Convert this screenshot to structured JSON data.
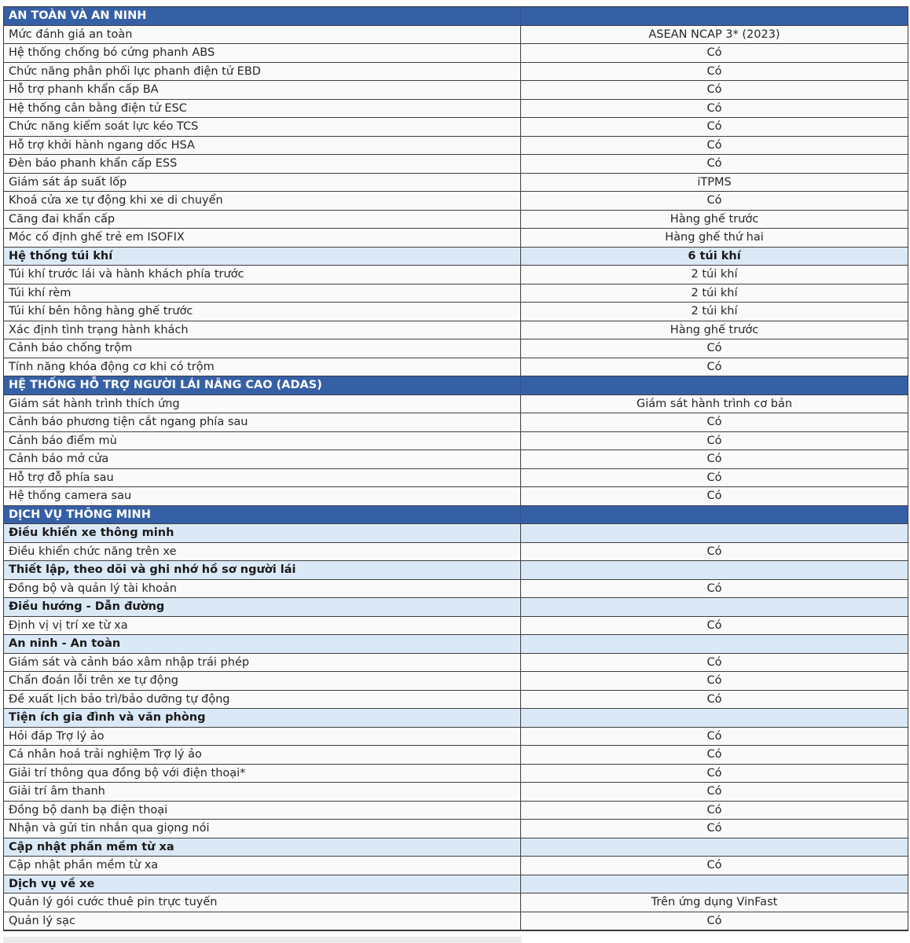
{
  "document_type": "vehicle-specification-table",
  "colors": {
    "section_header_bg": "#3660a6",
    "section_header_text": "#ffffff",
    "subheader_bg": "#dbe9f7",
    "row_bg": "#fafafa",
    "border": "#3f3f3f"
  },
  "table": {
    "sections": [
      {
        "title": "AN TOÀN VÀ AN NINH",
        "rows": [
          {
            "label": "Mức đánh giá an toàn",
            "value": "ASEAN NCAP 3* (2023)",
            "type": "normal"
          },
          {
            "label": "Hệ thống chống bó cứng phanh ABS",
            "value": "Có",
            "type": "normal"
          },
          {
            "label": "Chức năng phân phối lực phanh điện tử EBD",
            "value": "Có",
            "type": "normal"
          },
          {
            "label": "Hỗ trợ phanh khẩn cấp BA",
            "value": "Có",
            "type": "normal"
          },
          {
            "label": "Hệ thống cân bằng điện tử ESC",
            "value": "Có",
            "type": "normal"
          },
          {
            "label": "Chức năng kiểm soát lực kéo TCS",
            "value": "Có",
            "type": "normal"
          },
          {
            "label": "Hỗ trợ khởi hành ngang dốc HSA",
            "value": "Có",
            "type": "normal"
          },
          {
            "label": "Đèn báo phanh khẩn cấp ESS",
            "value": "Có",
            "type": "normal"
          },
          {
            "label": "Giám sát áp suất lốp",
            "value": "iTPMS",
            "type": "normal"
          },
          {
            "label": "Khoá cửa xe tự động khi xe di chuyển",
            "value": "Có",
            "type": "normal"
          },
          {
            "label": "Căng đai khẩn cấp",
            "value": "Hàng ghế trước",
            "type": "normal"
          },
          {
            "label": "Móc cố định ghế trẻ em ISOFIX",
            "value": "Hàng ghế thứ hai",
            "type": "normal"
          },
          {
            "label": "Hệ thống túi khí",
            "value": "6 túi khí",
            "type": "subheader"
          },
          {
            "label": "Túi khí trước lái và hành khách phía trước",
            "value": "2 túi khí",
            "type": "normal"
          },
          {
            "label": "Túi khí rèm",
            "value": "2 túi khí",
            "type": "normal"
          },
          {
            "label": "Túi khí bên hông hàng ghế trước",
            "value": "2 túi khí",
            "type": "normal"
          },
          {
            "label": "Xác định tình trạng hành khách",
            "value": "Hàng ghế trước",
            "type": "normal"
          },
          {
            "label": "Cảnh báo chống trộm",
            "value": "Có",
            "type": "normal"
          },
          {
            "label": "Tính năng khóa động cơ khi có trộm",
            "value": "Có",
            "type": "normal"
          }
        ]
      },
      {
        "title": "HỆ THỐNG HỖ TRỢ NGƯỜI LÁI NÂNG CAO (ADAS)",
        "rows": [
          {
            "label": "Giám sát hành trình thích ứng",
            "value": "Giám sát hành trình cơ bản",
            "type": "normal"
          },
          {
            "label": "Cảnh báo phương tiện cắt ngang phía sau",
            "value": "Có",
            "type": "normal"
          },
          {
            "label": "Cảnh báo điểm mù",
            "value": "Có",
            "type": "normal"
          },
          {
            "label": "Cảnh báo mở cửa",
            "value": "Có",
            "type": "normal"
          },
          {
            "label": "Hỗ trợ đỗ phía sau",
            "value": "Có",
            "type": "normal"
          },
          {
            "label": "Hệ thống camera sau",
            "value": "Có",
            "type": "normal"
          }
        ]
      },
      {
        "title": "DỊCH VỤ THÔNG MINH",
        "rows": [
          {
            "label": "Điều khiển xe thông minh",
            "value": "",
            "type": "subheader"
          },
          {
            "label": "Điều khiển chức năng trên xe",
            "value": "Có",
            "type": "normal"
          },
          {
            "label": "Thiết lập, theo dõi và ghi nhớ hồ sơ người lái",
            "value": "",
            "type": "subheader"
          },
          {
            "label": "Đồng bộ và quản lý tài khoản",
            "value": "Có",
            "type": "normal"
          },
          {
            "label": "Điều hướng - Dẫn đường",
            "value": "",
            "type": "subheader"
          },
          {
            "label": "Định vị vị trí xe từ xa",
            "value": "Có",
            "type": "normal"
          },
          {
            "label": "An ninh - An toàn",
            "value": "",
            "type": "subheader"
          },
          {
            "label": "Giám sát và cảnh báo xâm nhập trái phép",
            "value": "Có",
            "type": "normal"
          },
          {
            "label": "Chẩn đoán lỗi trên xe tự động",
            "value": "Có",
            "type": "normal"
          },
          {
            "label": "Đề xuất lịch bảo trì/bảo dưỡng tự động",
            "value": "Có",
            "type": "normal"
          },
          {
            "label": "Tiện ích gia đình và văn phòng",
            "value": "",
            "type": "subheader"
          },
          {
            "label": "Hỏi đáp Trợ lý ảo",
            "value": "Có",
            "type": "normal"
          },
          {
            "label": "Cá nhân hoá trải nghiệm Trợ lý ảo",
            "value": "Có",
            "type": "normal"
          },
          {
            "label": "Giải trí thông qua đồng bộ với điện thoại*",
            "value": "Có",
            "type": "normal"
          },
          {
            "label": "Giải trí âm thanh",
            "value": "Có",
            "type": "normal"
          },
          {
            "label": "Đồng bộ danh bạ điện thoại",
            "value": "Có",
            "type": "normal"
          },
          {
            "label": "Nhận và gửi tin nhắn qua giọng nói",
            "value": "Có",
            "type": "normal"
          },
          {
            "label": "Cập nhật phần mềm từ xa",
            "value": "",
            "type": "subheader"
          },
          {
            "label": "Cập nhật phần mềm từ xa",
            "value": "Có",
            "type": "normal"
          },
          {
            "label": "Dịch vụ về xe",
            "value": "",
            "type": "subheader"
          },
          {
            "label": "Quản lý gói cước thuê pin trực tuyến",
            "value": "Trên ứng dụng VinFast",
            "type": "normal"
          },
          {
            "label": "Quản lý sạc",
            "value": "Có",
            "type": "normal"
          }
        ]
      }
    ]
  }
}
